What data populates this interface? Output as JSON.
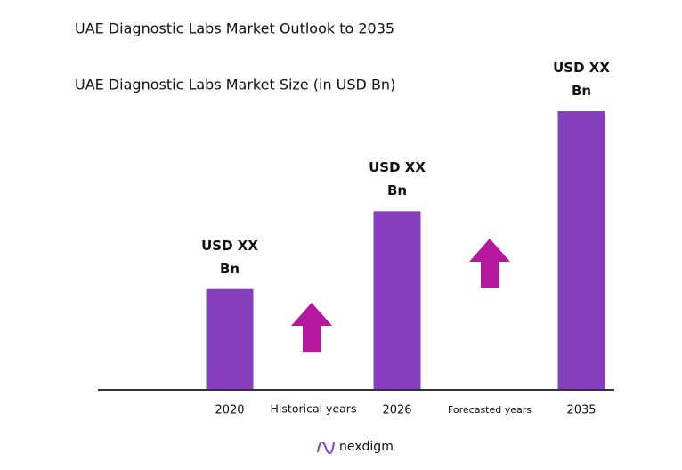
{
  "chart_data": {
    "type": "bar",
    "title": "UAE Diagnostic Labs Market Outlook to 2035",
    "subtitle": "UAE Diagnostic Labs Market Size (in USD Bn)",
    "categories": [
      "2020",
      "2026",
      "2035"
    ],
    "values": [
      36,
      64,
      100
    ],
    "value_labels": [
      "USD XX Bn",
      "USD XX Bn",
      "USD XX Bn"
    ],
    "color": "#853fbd",
    "ylim": [
      0,
      100
    ],
    "annotations": [
      "Historical years",
      "Forecasted years"
    ],
    "logo": "nexdigm"
  }
}
